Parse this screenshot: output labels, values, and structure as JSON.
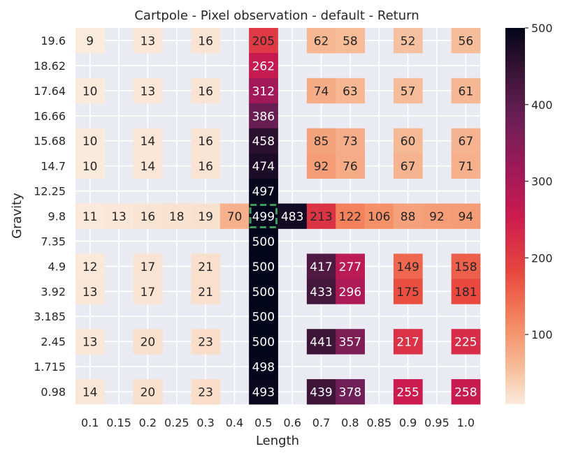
{
  "chart_data": {
    "type": "heatmap",
    "title": "Cartpole - Pixel observation - default - Return",
    "xlabel": "Length",
    "ylabel": "Gravity",
    "x_categories": [
      "0.1",
      "0.15",
      "0.2",
      "0.25",
      "0.3",
      "0.4",
      "0.5",
      "0.6",
      "0.7",
      "0.8",
      "0.85",
      "0.9",
      "0.95",
      "1.0"
    ],
    "y_categories": [
      "19.6",
      "18.62",
      "17.64",
      "16.66",
      "15.68",
      "14.7",
      "12.25",
      "9.8",
      "7.35",
      "4.9",
      "3.92",
      "3.185",
      "2.45",
      "1.715",
      "0.98"
    ],
    "values": [
      [
        9,
        null,
        13,
        null,
        16,
        null,
        205,
        null,
        62,
        58,
        null,
        52,
        null,
        56
      ],
      [
        null,
        null,
        null,
        null,
        null,
        null,
        262,
        null,
        null,
        null,
        null,
        null,
        null,
        null
      ],
      [
        10,
        null,
        13,
        null,
        16,
        null,
        312,
        null,
        74,
        63,
        null,
        57,
        null,
        61
      ],
      [
        null,
        null,
        null,
        null,
        null,
        null,
        386,
        null,
        null,
        null,
        null,
        null,
        null,
        null
      ],
      [
        10,
        null,
        14,
        null,
        16,
        null,
        458,
        null,
        85,
        73,
        null,
        60,
        null,
        67
      ],
      [
        10,
        null,
        14,
        null,
        16,
        null,
        474,
        null,
        92,
        76,
        null,
        67,
        null,
        71
      ],
      [
        null,
        null,
        null,
        null,
        null,
        null,
        497,
        null,
        null,
        null,
        null,
        null,
        null,
        null
      ],
      [
        11,
        13,
        16,
        18,
        19,
        70,
        499,
        483,
        213,
        122,
        106,
        88,
        92,
        94
      ],
      [
        null,
        null,
        null,
        null,
        null,
        null,
        500,
        null,
        null,
        null,
        null,
        null,
        null,
        null
      ],
      [
        12,
        null,
        17,
        null,
        21,
        null,
        500,
        null,
        417,
        277,
        null,
        149,
        null,
        158
      ],
      [
        13,
        null,
        17,
        null,
        21,
        null,
        500,
        null,
        433,
        296,
        null,
        175,
        null,
        181
      ],
      [
        null,
        null,
        null,
        null,
        null,
        null,
        500,
        null,
        null,
        null,
        null,
        null,
        null,
        null
      ],
      [
        13,
        null,
        20,
        null,
        23,
        null,
        500,
        null,
        441,
        357,
        null,
        217,
        null,
        225
      ],
      [
        null,
        null,
        null,
        null,
        null,
        null,
        498,
        null,
        null,
        null,
        null,
        null,
        null,
        null
      ],
      [
        14,
        null,
        20,
        null,
        23,
        null,
        493,
        null,
        439,
        378,
        null,
        255,
        null,
        258
      ]
    ],
    "highlight": {
      "x": "0.5",
      "y": "9.8",
      "color": "#3a9b5a",
      "style": "dashed"
    },
    "colorbar": {
      "min": 9,
      "max": 500,
      "ticks": [
        100,
        200,
        300,
        400,
        500
      ],
      "colormap": "rocket-reversed"
    },
    "grid": true,
    "background_color": "#eaeaf2"
  }
}
